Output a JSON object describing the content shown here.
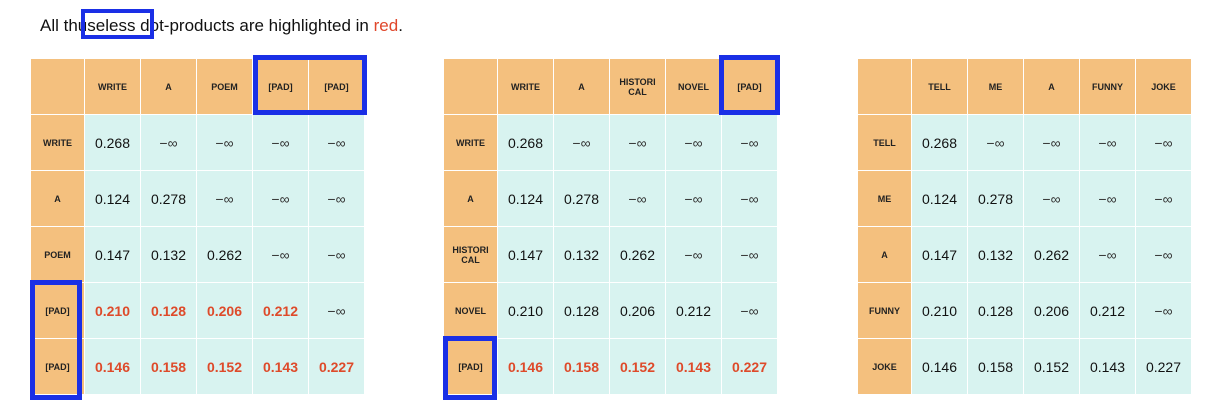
{
  "caption": {
    "pre": "All th",
    "highlight": "useless",
    "post": "dot-products are highlighted in",
    "red_word": "red",
    "end": "."
  },
  "colors": {
    "header": "#f4c07e",
    "cell": "#d8f3f0",
    "red": "#de4a2a",
    "box": "#1a2fe6"
  },
  "matrices": [
    {
      "col_headers": [
        "WRITE",
        "A",
        "POEM",
        "[PAD]",
        "[PAD]"
      ],
      "row_headers": [
        "WRITE",
        "A",
        "POEM",
        "[PAD]",
        "[PAD]"
      ],
      "rows": [
        [
          "0.268",
          "−∞",
          "−∞",
          "−∞",
          "−∞"
        ],
        [
          "0.124",
          "0.278",
          "−∞",
          "−∞",
          "−∞"
        ],
        [
          "0.147",
          "0.132",
          "0.262",
          "−∞",
          "−∞"
        ],
        [
          "0.210",
          "0.128",
          "0.206",
          "0.212",
          "−∞"
        ],
        [
          "0.146",
          "0.158",
          "0.152",
          "0.143",
          "0.227"
        ]
      ],
      "red_rows": [
        3,
        4
      ]
    },
    {
      "col_headers": [
        "WRITE",
        "A",
        "HISTORI CAL",
        "NOVEL",
        "[PAD]"
      ],
      "row_headers": [
        "WRITE",
        "A",
        "HISTORI CAL",
        "NOVEL",
        "[PAD]"
      ],
      "rows": [
        [
          "0.268",
          "−∞",
          "−∞",
          "−∞",
          "−∞"
        ],
        [
          "0.124",
          "0.278",
          "−∞",
          "−∞",
          "−∞"
        ],
        [
          "0.147",
          "0.132",
          "0.262",
          "−∞",
          "−∞"
        ],
        [
          "0.210",
          "0.128",
          "0.206",
          "0.212",
          "−∞"
        ],
        [
          "0.146",
          "0.158",
          "0.152",
          "0.143",
          "0.227"
        ]
      ],
      "red_rows": [
        4
      ]
    },
    {
      "col_headers": [
        "TELL",
        "ME",
        "A",
        "FUNNY",
        "JOKE"
      ],
      "row_headers": [
        "TELL",
        "ME",
        "A",
        "FUNNY",
        "JOKE"
      ],
      "rows": [
        [
          "0.268",
          "−∞",
          "−∞",
          "−∞",
          "−∞"
        ],
        [
          "0.124",
          "0.278",
          "−∞",
          "−∞",
          "−∞"
        ],
        [
          "0.147",
          "0.132",
          "0.262",
          "−∞",
          "−∞"
        ],
        [
          "0.210",
          "0.128",
          "0.206",
          "0.212",
          "−∞"
        ],
        [
          "0.146",
          "0.158",
          "0.152",
          "0.143",
          "0.227"
        ]
      ],
      "red_rows": []
    }
  ]
}
